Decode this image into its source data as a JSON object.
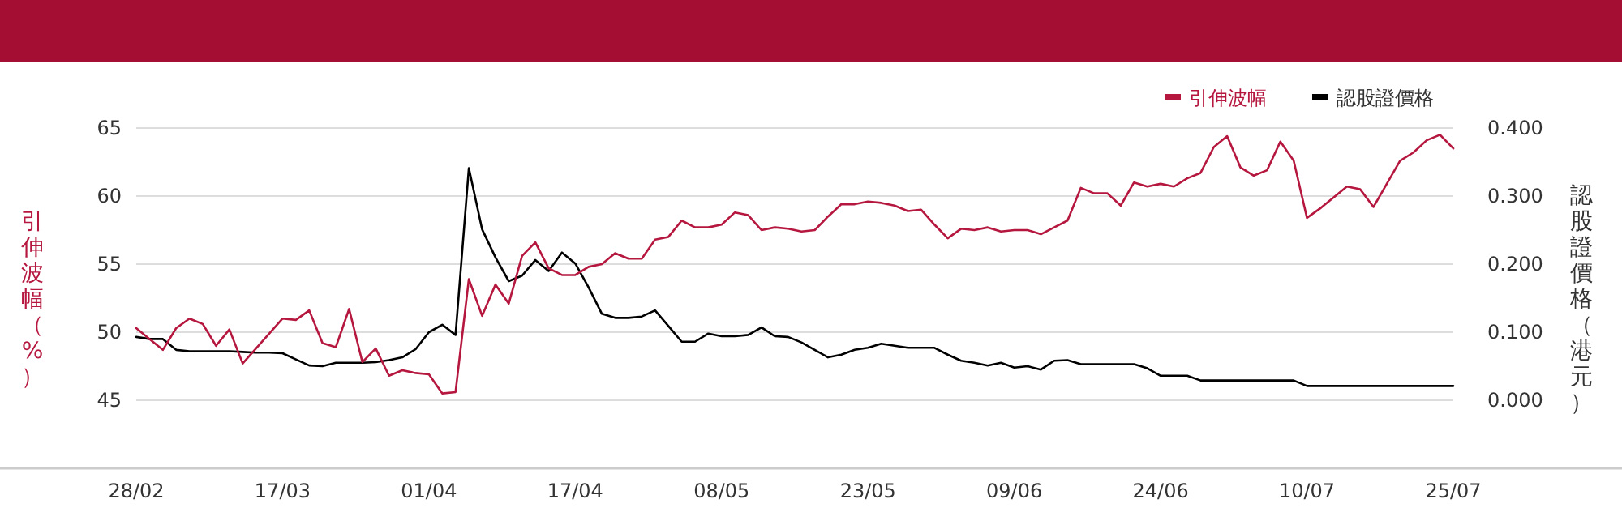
{
  "chart_data": {
    "type": "line",
    "categories": [
      "28/02",
      null,
      null,
      null,
      null,
      null,
      null,
      null,
      null,
      null,
      null,
      "17/03",
      null,
      null,
      null,
      null,
      null,
      null,
      null,
      null,
      null,
      null,
      "01/04",
      null,
      null,
      null,
      null,
      null,
      null,
      null,
      null,
      null,
      null,
      "17/04",
      null,
      null,
      null,
      null,
      null,
      null,
      null,
      null,
      null,
      null,
      "08/05",
      null,
      null,
      null,
      null,
      null,
      null,
      null,
      null,
      null,
      null,
      "23/05",
      null,
      null,
      null,
      null,
      null,
      null,
      null,
      null,
      null,
      null,
      "09/06",
      null,
      null,
      null,
      null,
      null,
      null,
      null,
      null,
      null,
      null,
      "24/06",
      null,
      null,
      null,
      null,
      null,
      null,
      null,
      null,
      null,
      null,
      "10/07",
      null,
      null,
      null,
      null,
      null,
      null,
      null,
      null,
      null,
      null,
      "25/07"
    ],
    "series": [
      {
        "name": "引伸波幅",
        "color": "#b5173f",
        "values": [
          50.3,
          49.5,
          48.7,
          50.3,
          51.0,
          50.6,
          49.0,
          50.2,
          47.7,
          48.8,
          49.9,
          51.0,
          50.9,
          51.6,
          49.2,
          48.9,
          51.7,
          47.8,
          48.8,
          46.8,
          47.2,
          47.0,
          46.9,
          45.5,
          45.6,
          53.9,
          51.2,
          53.5,
          52.1,
          55.6,
          56.6,
          54.7,
          54.2,
          54.2,
          54.8,
          55.0,
          55.8,
          55.4,
          55.4,
          56.8,
          57.0,
          58.2,
          57.7,
          57.7,
          57.9,
          58.8,
          58.6,
          57.5,
          57.7,
          57.6,
          57.4,
          57.5,
          58.5,
          59.4,
          59.4,
          59.6,
          59.5,
          59.3,
          58.9,
          59.0,
          57.9,
          56.9,
          57.6,
          57.5,
          57.7,
          57.4,
          57.5,
          57.5,
          57.2,
          57.7,
          58.2,
          60.6,
          60.2,
          60.2,
          59.3,
          61.0,
          60.7,
          60.9,
          60.7,
          61.3,
          61.7,
          63.6,
          64.4,
          62.1,
          61.5,
          61.9,
          64.0,
          62.6,
          58.4,
          59.1,
          59.9,
          60.7,
          60.5,
          59.2,
          60.9,
          62.6,
          63.2,
          64.1,
          64.5,
          63.5
        ]
      },
      {
        "name": "認股證價格",
        "color": "#000000",
        "axis": "y2",
        "values": [
          0.093,
          0.09,
          0.09,
          0.074,
          0.072,
          0.072,
          0.072,
          0.072,
          0.071,
          0.07,
          0.07,
          0.069,
          0.06,
          0.051,
          0.05,
          0.055,
          0.055,
          0.055,
          0.056,
          0.059,
          0.063,
          0.075,
          0.1,
          0.111,
          0.096,
          0.341,
          0.251,
          0.21,
          0.175,
          0.183,
          0.206,
          0.19,
          0.217,
          0.201,
          0.166,
          0.127,
          0.121,
          0.121,
          0.123,
          0.132,
          0.109,
          0.086,
          0.086,
          0.098,
          0.094,
          0.094,
          0.096,
          0.107,
          0.094,
          0.093,
          0.085,
          0.074,
          0.063,
          0.067,
          0.074,
          0.077,
          0.083,
          0.08,
          0.077,
          0.077,
          0.077,
          0.067,
          0.058,
          0.055,
          0.051,
          0.055,
          0.048,
          0.05,
          0.045,
          0.058,
          0.059,
          0.053,
          0.053,
          0.053,
          0.053,
          0.053,
          0.047,
          0.036,
          0.036,
          0.036,
          0.029,
          0.029,
          0.029,
          0.029,
          0.029,
          0.029,
          0.029,
          0.029,
          0.021,
          0.021,
          0.021,
          0.021,
          0.021,
          0.021,
          0.021,
          0.021,
          0.021,
          0.021,
          0.021,
          0.021
        ]
      }
    ],
    "ylabel": "引伸波幅（%）",
    "y2label": "認股證價格（港元）",
    "ylim": [
      40,
      65
    ],
    "yticks": [
      45,
      50,
      55,
      60,
      65
    ],
    "y2lim": [
      -0.1,
      0.4
    ],
    "y2ticks": [
      {
        "value": 0,
        "label": "0.000"
      },
      {
        "value": 0.1,
        "label": "0.100"
      },
      {
        "value": 0.2,
        "label": "0.200"
      },
      {
        "value": 0.3,
        "label": "0.300"
      },
      {
        "value": 0.4,
        "label": "0.400"
      }
    ],
    "grid": "y",
    "legend": "top right",
    "marker": "none",
    "line_style": "solid"
  }
}
